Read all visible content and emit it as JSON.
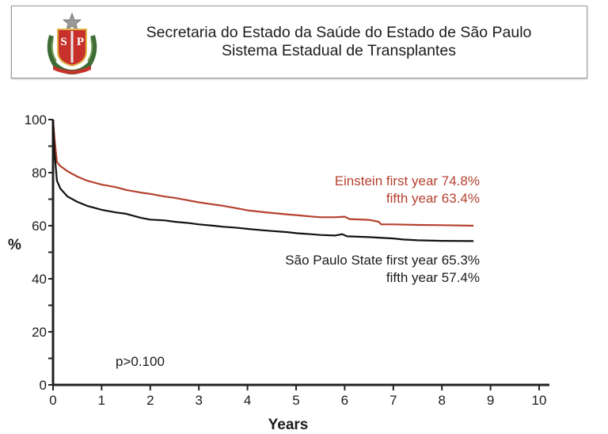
{
  "header": {
    "line1": "Secretaria do Estado da Saúde do Estado de São Paulo",
    "line2": "Sistema Estadual de Transplantes",
    "seal_text": "SP"
  },
  "chart_data": {
    "type": "line",
    "title": "",
    "xlabel": "Years",
    "ylabel": "%",
    "xlim": [
      0,
      10
    ],
    "ylim": [
      0,
      100
    ],
    "xticks": [
      "0",
      "1",
      "2",
      "3",
      "4",
      "5",
      "6",
      "7",
      "8",
      "9",
      "10"
    ],
    "yticks": [
      "0",
      "20",
      "40",
      "60",
      "80",
      "100"
    ],
    "grid": false,
    "colors": {
      "einstein": "#b5412f",
      "state": "#111111",
      "axis": "#222222"
    },
    "series": [
      {
        "name": "Einstein",
        "x": [
          0,
          0.03,
          0.08,
          0.15,
          0.3,
          0.5,
          0.7,
          1.0,
          1.3,
          1.5,
          1.8,
          2.0,
          2.3,
          2.5,
          2.8,
          3.0,
          3.3,
          3.5,
          3.8,
          4.0,
          4.3,
          4.5,
          4.8,
          5.0,
          5.3,
          5.5,
          5.8,
          6.0,
          6.1,
          6.5,
          6.7,
          6.75,
          7.0,
          7.5,
          8.0,
          8.65
        ],
        "y": [
          100,
          93,
          84,
          82.5,
          80.5,
          78.5,
          77,
          75.5,
          74.5,
          73.5,
          72.5,
          72,
          71,
          70.5,
          69.5,
          68.8,
          68,
          67.5,
          66.5,
          65.8,
          65.2,
          64.8,
          64.3,
          64,
          63.5,
          63.2,
          63.2,
          63.4,
          62.5,
          62.2,
          61.5,
          60.5,
          60.5,
          60.3,
          60.2,
          60
        ]
      },
      {
        "name": "São Paulo State",
        "x": [
          0,
          0.03,
          0.08,
          0.15,
          0.3,
          0.5,
          0.7,
          1.0,
          1.3,
          1.5,
          1.8,
          2.0,
          2.3,
          2.5,
          2.8,
          3.0,
          3.3,
          3.5,
          3.8,
          4.0,
          4.3,
          4.5,
          4.8,
          5.0,
          5.3,
          5.5,
          5.8,
          5.95,
          6.05,
          6.5,
          7.0,
          7.2,
          7.5,
          8.0,
          8.65
        ],
        "y": [
          100,
          88,
          77,
          74,
          71,
          69,
          67.5,
          66,
          65,
          64.5,
          63,
          62.3,
          62,
          61.5,
          61,
          60.5,
          60,
          59.6,
          59.2,
          58.8,
          58.3,
          58,
          57.6,
          57.2,
          56.8,
          56.5,
          56.3,
          56.8,
          56,
          55.7,
          55.2,
          54.8,
          54.5,
          54.3,
          54.2
        ]
      }
    ],
    "annotations": {
      "einstein_line1": "Einstein first year 74.8%",
      "einstein_line2": "fifth year 63.4%",
      "state_line1": "São Paulo State first year 65.3%",
      "state_line2": "fifth year 57.4%",
      "pvalue": "p>0.100"
    }
  }
}
